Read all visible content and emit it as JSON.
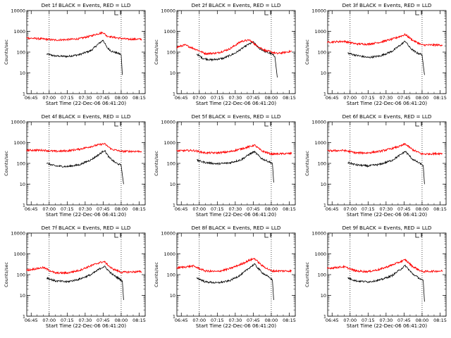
{
  "chart_data": [
    {
      "type": "line",
      "title": "Det 1f BLACK = Events, RED = LLD",
      "xlabel": "Start Time (22-Dec-06 06:41:20)",
      "ylabel": "Counts/sec",
      "xticks": [
        "06:45",
        "07:00",
        "07:15",
        "07:30",
        "07:45",
        "08:00",
        "08:15"
      ],
      "yticks": [
        "1",
        "10",
        "100",
        "1000",
        "10000"
      ],
      "ylim": [
        1,
        10000
      ],
      "yscale": "log",
      "vlines": [
        "07:00",
        "08:00"
      ],
      "marker_label": "L",
      "series": [
        {
          "color": "#000000",
          "x": [
            "06:58",
            "07:05",
            "07:15",
            "07:25",
            "07:35",
            "07:40",
            "07:45",
            "07:48",
            "07:52",
            "07:58",
            "08:00",
            "08:01"
          ],
          "values": [
            80,
            65,
            62,
            75,
            120,
            220,
            380,
            170,
            110,
            85,
            75,
            8
          ]
        },
        {
          "color": "#ff0000",
          "x": [
            "06:41",
            "06:55",
            "07:05",
            "07:15",
            "07:25",
            "07:35",
            "07:40",
            "07:45",
            "07:48",
            "07:55",
            "08:05",
            "08:17"
          ],
          "values": [
            480,
            430,
            380,
            400,
            440,
            600,
            750,
            880,
            600,
            500,
            420,
            420
          ]
        }
      ]
    },
    {
      "type": "line",
      "title": "Det 2f BLACK = Events, RED = LLD",
      "xlabel": "Start Time (22-Dec-06 06:41:20)",
      "ylabel": "Counts/sec",
      "xticks": [
        "06:45",
        "07:00",
        "07:15",
        "07:30",
        "07:45",
        "08:00",
        "08:15"
      ],
      "yticks": [
        "1",
        "10",
        "100",
        "1000",
        "10000"
      ],
      "ylim": [
        1,
        10000
      ],
      "yscale": "log",
      "vlines": [
        "07:00",
        "08:00"
      ],
      "marker_label": "L",
      "series": [
        {
          "color": "#000000",
          "x": [
            "06:58",
            "07:03",
            "07:10",
            "07:20",
            "07:30",
            "07:40",
            "07:45",
            "07:50",
            "07:56",
            "08:00",
            "08:03",
            "08:05"
          ],
          "values": [
            80,
            50,
            42,
            50,
            90,
            220,
            300,
            150,
            100,
            85,
            60,
            6
          ]
        },
        {
          "color": "#ff0000",
          "x": [
            "06:41",
            "06:48",
            "06:58",
            "07:05",
            "07:15",
            "07:25",
            "07:35",
            "07:42",
            "07:48",
            "07:55",
            "08:05",
            "08:17"
          ],
          "values": [
            170,
            220,
            130,
            85,
            90,
            140,
            330,
            380,
            200,
            120,
            85,
            110
          ]
        }
      ]
    },
    {
      "type": "line",
      "title": "Det 3f BLACK = Events, RED = LLD",
      "xlabel": "Start Time (22-Dec-06 06:41:20)",
      "ylabel": "Counts/sec",
      "xticks": [
        "06:45",
        "07:00",
        "07:15",
        "07:30",
        "07:45",
        "08:00",
        "08:15"
      ],
      "yticks": [
        "1",
        "10",
        "100",
        "1000",
        "10000"
      ],
      "ylim": [
        1,
        10000
      ],
      "yscale": "log",
      "vlines": [
        "07:00",
        "08:00"
      ],
      "marker_label": "L",
      "series": [
        {
          "color": "#000000",
          "x": [
            "06:58",
            "07:05",
            "07:15",
            "07:25",
            "07:35",
            "07:42",
            "07:46",
            "07:50",
            "07:55",
            "08:00",
            "08:02"
          ],
          "values": [
            90,
            70,
            55,
            65,
            110,
            220,
            340,
            160,
            95,
            75,
            8
          ]
        },
        {
          "color": "#ff0000",
          "x": [
            "06:41",
            "06:55",
            "07:05",
            "07:15",
            "07:25",
            "07:35",
            "07:42",
            "07:46",
            "07:52",
            "08:00",
            "08:17"
          ],
          "values": [
            300,
            330,
            250,
            240,
            300,
            420,
            580,
            700,
            380,
            220,
            220
          ]
        }
      ]
    },
    {
      "type": "line",
      "title": "Det 4f BLACK = Events, RED = LLD",
      "xlabel": "Start Time (22-Dec-06 06:41:20)",
      "ylabel": "Counts/sec",
      "xticks": [
        "06:45",
        "07:00",
        "07:15",
        "07:30",
        "07:45",
        "08:00",
        "08:15"
      ],
      "yticks": [
        "1",
        "10",
        "100",
        "1000",
        "10000"
      ],
      "ylim": [
        1,
        10000
      ],
      "yscale": "log",
      "vlines": [
        "07:00",
        "08:00"
      ],
      "marker_label": "L",
      "series": [
        {
          "color": "#000000",
          "x": [
            "06:58",
            "07:05",
            "07:15",
            "07:25",
            "07:35",
            "07:42",
            "07:46",
            "07:50",
            "07:55",
            "08:00",
            "08:02"
          ],
          "values": [
            100,
            75,
            70,
            85,
            150,
            280,
            430,
            190,
            110,
            80,
            10
          ]
        },
        {
          "color": "#ff0000",
          "x": [
            "06:41",
            "06:55",
            "07:05",
            "07:15",
            "07:25",
            "07:35",
            "07:42",
            "07:46",
            "07:52",
            "08:00",
            "08:17"
          ],
          "values": [
            430,
            430,
            380,
            400,
            480,
            650,
            800,
            880,
            480,
            380,
            380
          ]
        }
      ]
    },
    {
      "type": "line",
      "title": "Det 5f BLACK = Events, RED = LLD",
      "xlabel": "Start Time (22-Dec-06 06:41:20)",
      "ylabel": "Counts/sec",
      "xticks": [
        "06:45",
        "07:00",
        "07:15",
        "07:30",
        "07:45",
        "08:00",
        "08:15"
      ],
      "yticks": [
        "1",
        "10",
        "100",
        "1000",
        "10000"
      ],
      "ylim": [
        1,
        10000
      ],
      "yscale": "log",
      "vlines": [
        "07:00",
        "08:00"
      ],
      "marker_label": "L",
      "series": [
        {
          "color": "#000000",
          "x": [
            "06:58",
            "07:05",
            "07:15",
            "07:25",
            "07:35",
            "07:42",
            "07:46",
            "07:52",
            "07:58",
            "08:01",
            "08:02"
          ],
          "values": [
            140,
            110,
            95,
            105,
            150,
            280,
            360,
            170,
            120,
            100,
            12
          ]
        },
        {
          "color": "#ff0000",
          "x": [
            "06:41",
            "06:55",
            "07:05",
            "07:15",
            "07:25",
            "07:35",
            "07:42",
            "07:46",
            "07:52",
            "08:00",
            "08:17"
          ],
          "values": [
            400,
            420,
            320,
            320,
            360,
            500,
            640,
            760,
            400,
            280,
            300
          ]
        }
      ]
    },
    {
      "type": "line",
      "title": "Det 6f BLACK = Events, RED = LLD",
      "xlabel": "Start Time (22-Dec-06 06:41:20)",
      "ylabel": "Counts/sec",
      "xticks": [
        "06:45",
        "07:00",
        "07:15",
        "07:30",
        "07:45",
        "08:00",
        "08:15"
      ],
      "yticks": [
        "1",
        "10",
        "100",
        "1000",
        "10000"
      ],
      "ylim": [
        1,
        10000
      ],
      "yscale": "log",
      "vlines": [
        "07:00",
        "08:00"
      ],
      "marker_label": "L",
      "series": [
        {
          "color": "#000000",
          "x": [
            "06:58",
            "07:05",
            "07:15",
            "07:25",
            "07:35",
            "07:42",
            "07:46",
            "07:52",
            "07:58",
            "08:01",
            "08:02"
          ],
          "values": [
            110,
            85,
            75,
            90,
            140,
            260,
            380,
            160,
            100,
            80,
            10
          ]
        },
        {
          "color": "#ff0000",
          "x": [
            "06:41",
            "06:55",
            "07:05",
            "07:15",
            "07:25",
            "07:35",
            "07:42",
            "07:46",
            "07:52",
            "08:00",
            "08:17"
          ],
          "values": [
            400,
            420,
            320,
            320,
            380,
            520,
            680,
            860,
            460,
            280,
            300
          ]
        }
      ]
    },
    {
      "type": "line",
      "title": "Det 7f BLACK = Events, RED = LLD",
      "xlabel": "Start Time (22-Dec-06 06:41:20)",
      "ylabel": "Counts/sec",
      "xticks": [
        "06:45",
        "07:00",
        "07:15",
        "07:30",
        "07:45",
        "08:00",
        "08:15"
      ],
      "yticks": [
        "1",
        "10",
        "100",
        "1000",
        "10000"
      ],
      "ylim": [
        1,
        10000
      ],
      "yscale": "log",
      "vlines": [
        "07:00",
        "08:00"
      ],
      "marker_label": "L",
      "series": [
        {
          "color": "#000000",
          "x": [
            "06:58",
            "07:05",
            "07:15",
            "07:25",
            "07:35",
            "07:42",
            "07:46",
            "07:52",
            "07:58",
            "08:01",
            "08:02"
          ],
          "values": [
            70,
            50,
            45,
            60,
            100,
            190,
            250,
            110,
            65,
            50,
            6
          ]
        },
        {
          "color": "#ff0000",
          "x": [
            "06:41",
            "06:55",
            "07:05",
            "07:15",
            "07:25",
            "07:35",
            "07:42",
            "07:46",
            "07:52",
            "08:00",
            "08:17"
          ],
          "values": [
            160,
            220,
            120,
            120,
            160,
            270,
            380,
            420,
            200,
            130,
            140
          ]
        }
      ]
    },
    {
      "type": "line",
      "title": "Det 8f BLACK = Events, RED = LLD",
      "xlabel": "Start Time (22-Dec-06 06:41:20)",
      "ylabel": "Counts/sec",
      "xticks": [
        "06:45",
        "07:00",
        "07:15",
        "07:30",
        "07:45",
        "08:00",
        "08:15"
      ],
      "yticks": [
        "1",
        "10",
        "100",
        "1000",
        "10000"
      ],
      "ylim": [
        1,
        10000
      ],
      "yscale": "log",
      "vlines": [
        "07:00",
        "08:00"
      ],
      "marker_label": "L",
      "series": [
        {
          "color": "#000000",
          "x": [
            "06:58",
            "07:05",
            "07:15",
            "07:25",
            "07:35",
            "07:42",
            "07:46",
            "07:52",
            "07:58",
            "08:01",
            "08:02"
          ],
          "values": [
            70,
            45,
            40,
            50,
            100,
            220,
            320,
            130,
            75,
            55,
            6
          ]
        },
        {
          "color": "#ff0000",
          "x": [
            "06:41",
            "06:55",
            "07:05",
            "07:15",
            "07:25",
            "07:35",
            "07:42",
            "07:46",
            "07:52",
            "08:00",
            "08:17"
          ],
          "values": [
            210,
            260,
            150,
            140,
            190,
            320,
            500,
            600,
            280,
            150,
            150
          ]
        }
      ]
    },
    {
      "type": "line",
      "title": "Det 9f BLACK = Events, RED = LLD",
      "xlabel": "Start Time (22-Dec-06 06:41:20)",
      "ylabel": "Counts/sec",
      "xticks": [
        "06:45",
        "07:00",
        "07:15",
        "07:30",
        "07:45",
        "08:00",
        "08:15"
      ],
      "yticks": [
        "1",
        "10",
        "100",
        "1000",
        "10000"
      ],
      "ylim": [
        1,
        10000
      ],
      "yscale": "log",
      "vlines": [
        "07:00",
        "08:00"
      ],
      "marker_label": "L",
      "series": [
        {
          "color": "#000000",
          "x": [
            "06:58",
            "07:05",
            "07:15",
            "07:25",
            "07:35",
            "07:42",
            "07:46",
            "07:52",
            "07:58",
            "08:01",
            "08:02"
          ],
          "values": [
            70,
            50,
            45,
            55,
            90,
            180,
            270,
            110,
            65,
            50,
            5
          ]
        },
        {
          "color": "#ff0000",
          "x": [
            "06:41",
            "06:55",
            "07:05",
            "07:15",
            "07:25",
            "07:35",
            "07:42",
            "07:46",
            "07:52",
            "08:00",
            "08:17"
          ],
          "values": [
            200,
            240,
            150,
            140,
            180,
            290,
            420,
            520,
            250,
            140,
            150
          ]
        }
      ]
    }
  ]
}
